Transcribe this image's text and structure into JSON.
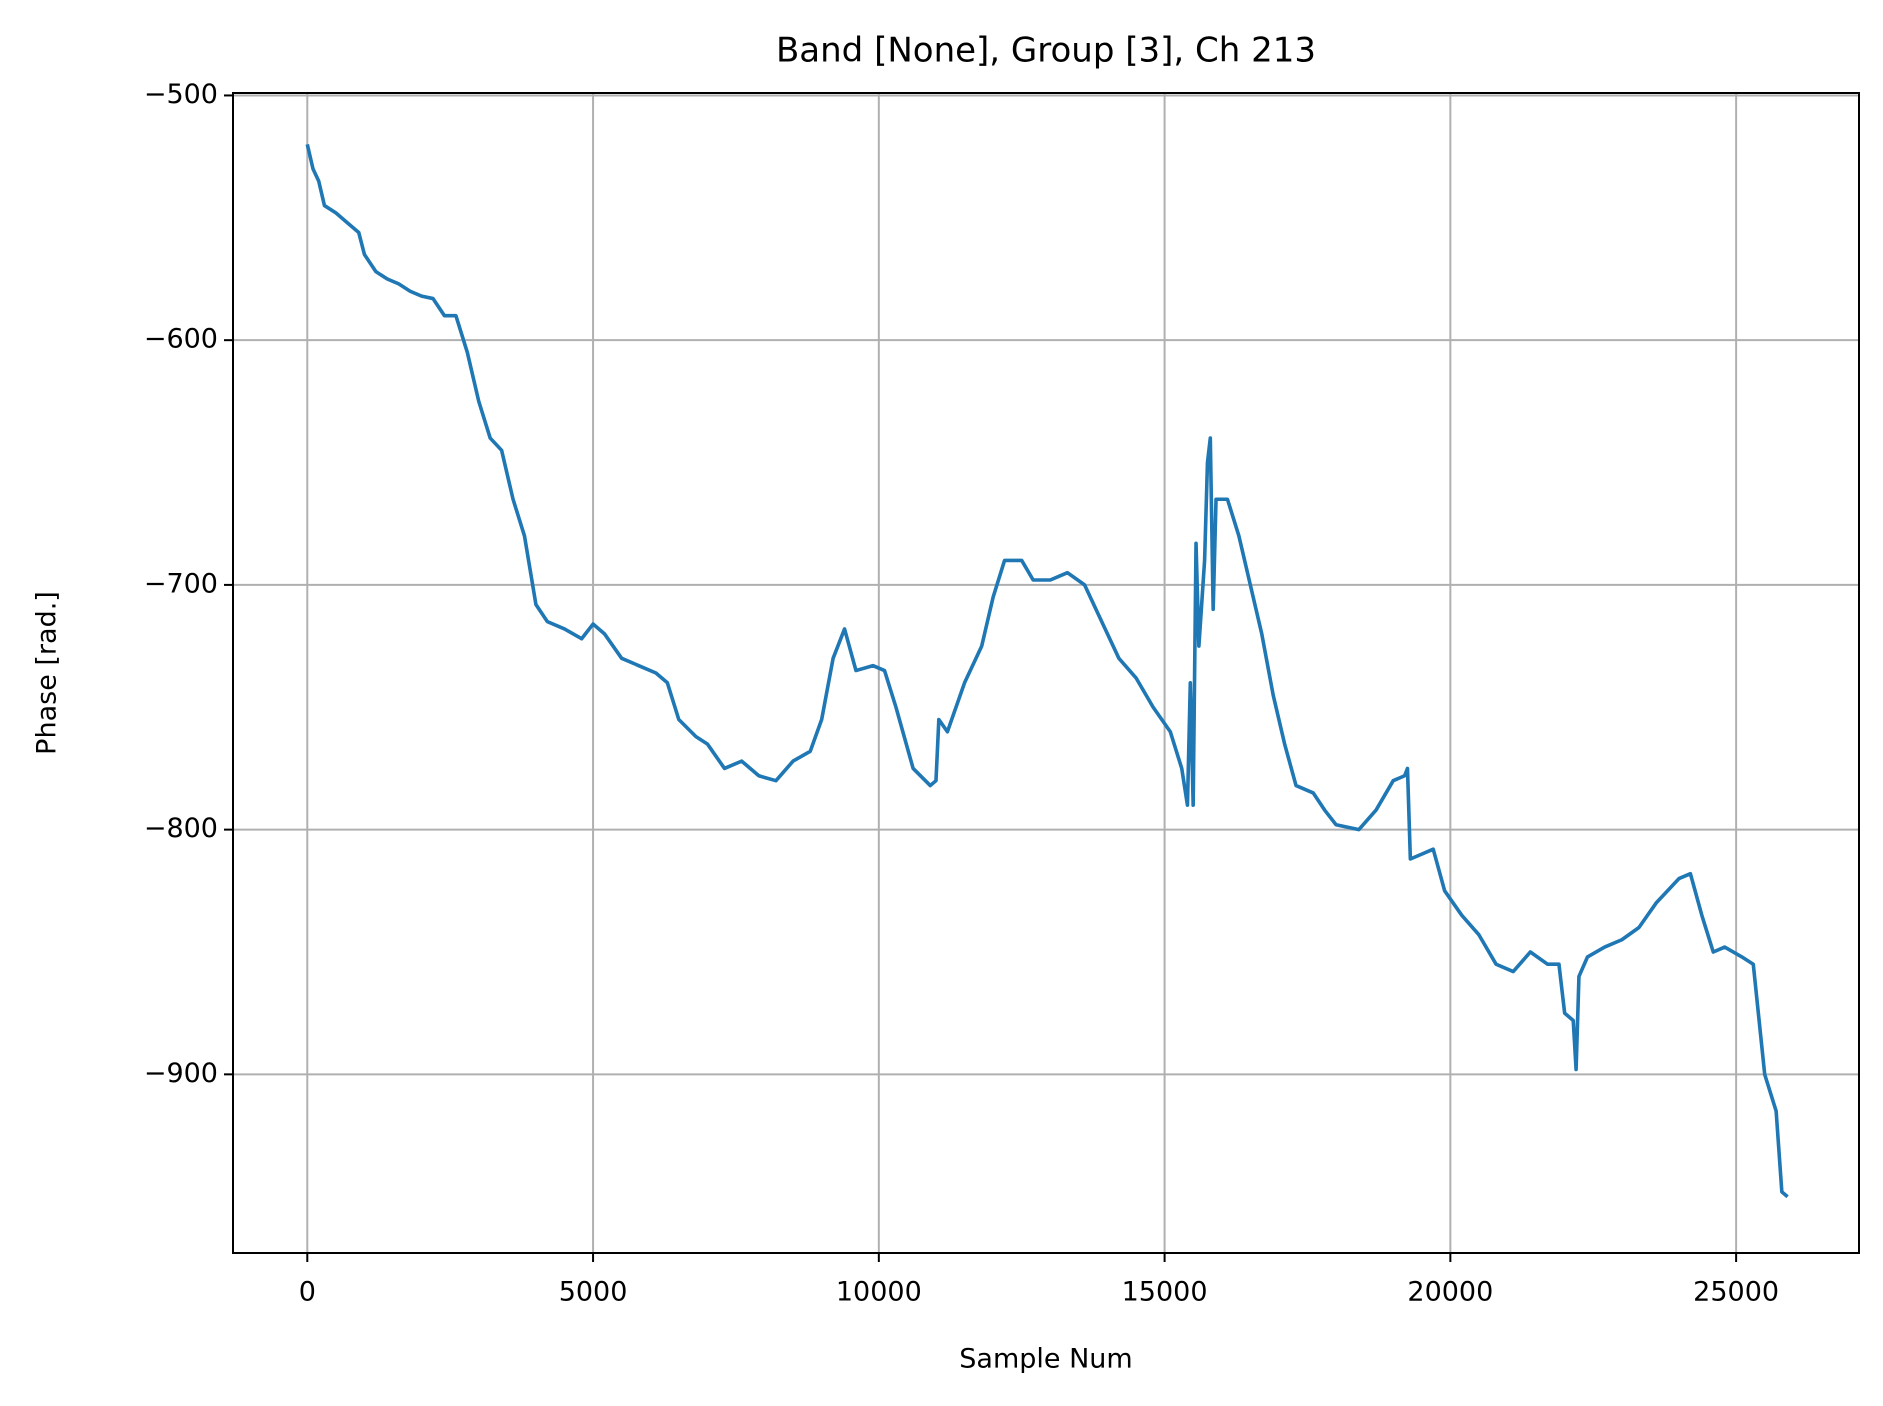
{
  "chart_data": {
    "type": "line",
    "title": "Band [None], Group [3], Ch 213",
    "x_label": "Sample Num",
    "y_label": "Phase [rad.]",
    "color": "#1f77b4",
    "grid": true,
    "xlim": [
      -1300,
      27150
    ],
    "ylim": [
      -973,
      -499
    ],
    "xticks": [
      0,
      5000,
      10000,
      15000,
      20000,
      25000
    ],
    "yticks": [
      {
        "value": -500,
        "label": "−500"
      },
      {
        "value": -600,
        "label": "−600"
      },
      {
        "value": -700,
        "label": "−700"
      },
      {
        "value": -800,
        "label": "−800"
      },
      {
        "value": -900,
        "label": "−900"
      }
    ],
    "x": [
      0,
      100,
      200,
      300,
      500,
      700,
      900,
      1000,
      1200,
      1400,
      1600,
      1800,
      2000,
      2200,
      2400,
      2600,
      2800,
      3000,
      3200,
      3400,
      3600,
      3800,
      4000,
      4200,
      4500,
      4800,
      5000,
      5200,
      5500,
      5800,
      6100,
      6300,
      6500,
      6800,
      7000,
      7300,
      7600,
      7900,
      8200,
      8500,
      8800,
      9000,
      9200,
      9400,
      9600,
      9900,
      10100,
      10300,
      10600,
      10900,
      11000,
      11050,
      11200,
      11500,
      11800,
      12000,
      12200,
      12500,
      12700,
      13000,
      13300,
      13600,
      13900,
      14200,
      14500,
      14800,
      15100,
      15300,
      15400,
      15450,
      15500,
      15550,
      15600,
      15700,
      15750,
      15800,
      15850,
      15900,
      16100,
      16300,
      16500,
      16700,
      16900,
      17100,
      17300,
      17600,
      17800,
      18000,
      18400,
      18700,
      19000,
      19200,
      19250,
      19300,
      19500,
      19700,
      19900,
      20200,
      20500,
      20800,
      21100,
      21400,
      21700,
      21900,
      22000,
      22150,
      22200,
      22250,
      22400,
      22700,
      23000,
      23300,
      23600,
      24000,
      24200,
      24400,
      24600,
      24800,
      25100,
      25300,
      25500,
      25700,
      25800,
      25900
    ],
    "values": [
      -520,
      -530,
      -535,
      -545,
      -548,
      -552,
      -556,
      -565,
      -572,
      -575,
      -577,
      -580,
      -582,
      -583,
      -590,
      -590,
      -605,
      -625,
      -640,
      -645,
      -665,
      -680,
      -708,
      -715,
      -718,
      -722,
      -716,
      -720,
      -730,
      -733,
      -736,
      -740,
      -755,
      -762,
      -765,
      -775,
      -772,
      -778,
      -780,
      -772,
      -768,
      -755,
      -730,
      -718,
      -735,
      -733,
      -735,
      -750,
      -775,
      -782,
      -780,
      -755,
      -760,
      -740,
      -725,
      -705,
      -690,
      -690,
      -698,
      -698,
      -695,
      -700,
      -715,
      -730,
      -738,
      -750,
      -760,
      -775,
      -790,
      -740,
      -790,
      -683,
      -725,
      -690,
      -650,
      -640,
      -710,
      -665,
      -665,
      -680,
      -700,
      -720,
      -745,
      -765,
      -782,
      -785,
      -792,
      -798,
      -800,
      -792,
      -780,
      -778,
      -775,
      -812,
      -810,
      -808,
      -825,
      -835,
      -843,
      -855,
      -858,
      -850,
      -855,
      -855,
      -875,
      -878,
      -898,
      -860,
      -852,
      -848,
      -845,
      -840,
      -830,
      -820,
      -818,
      -835,
      -850,
      -848,
      -852,
      -855,
      -900,
      -915,
      -948,
      -950
    ]
  }
}
